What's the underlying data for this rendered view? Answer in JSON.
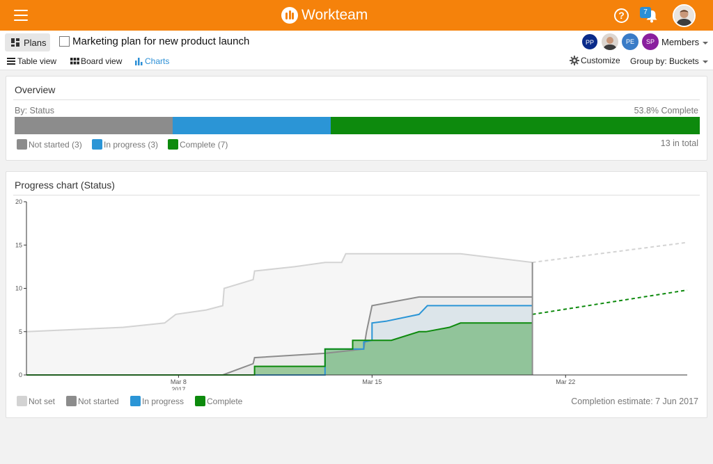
{
  "app": {
    "name": "Workteam",
    "notification_count": "7"
  },
  "plan": {
    "plans_label": "Plans",
    "title": "Marketing plan for new product launch"
  },
  "members": {
    "avatars": [
      "PP",
      "PE",
      "SP"
    ],
    "label": "Members"
  },
  "views": {
    "table": "Table view",
    "board": "Board view",
    "charts": "Charts",
    "active": "charts"
  },
  "toolbar": {
    "customize": "Customize",
    "group_by": "Group by: Buckets"
  },
  "overview": {
    "title": "Overview",
    "by_label": "By: Status",
    "complete_text": "53.8% Complete",
    "total_text": "13 in total",
    "segments": [
      {
        "label": "Not started (3)",
        "count": 3,
        "color": "#8c8c8c"
      },
      {
        "label": "In progress (3)",
        "count": 3,
        "color": "#2b95d6"
      },
      {
        "label": "Complete (7)",
        "count": 7,
        "color": "#0d8a0d"
      }
    ]
  },
  "progress": {
    "title": "Progress chart (Status)",
    "estimate": "Completion estimate: 7 Jun 2017",
    "legend": [
      {
        "label": "Not set",
        "color": "#d3d3d3"
      },
      {
        "label": "Not started",
        "color": "#8c8c8c"
      },
      {
        "label": "In progress",
        "color": "#2b95d6"
      },
      {
        "label": "Complete",
        "color": "#0d8a0d"
      }
    ]
  },
  "chart_data": {
    "type": "area",
    "title": "Progress chart (Status)",
    "x_ticks": [
      {
        "day": 8,
        "label": "Mar 8",
        "sublabel": "2017"
      },
      {
        "day": 15,
        "label": "Mar 15",
        "sublabel": ""
      },
      {
        "day": 22,
        "label": "Mar 22",
        "sublabel": ""
      }
    ],
    "y_ticks": [
      0,
      5,
      10,
      15,
      20
    ],
    "xlim": [
      2.5,
      26.4
    ],
    "ylim": [
      0,
      20
    ],
    "today_day": 20.8,
    "series": [
      {
        "name": "Not set",
        "color": "#d3d3d3",
        "points": [
          [
            2.5,
            5
          ],
          [
            6,
            5.5
          ],
          [
            7.5,
            6
          ],
          [
            7.9,
            7
          ],
          [
            9,
            7.5
          ],
          [
            9.6,
            8
          ],
          [
            9.65,
            10
          ],
          [
            10.7,
            11
          ],
          [
            10.75,
            12
          ],
          [
            12.2,
            12.5
          ],
          [
            13.3,
            13
          ],
          [
            13.9,
            13
          ],
          [
            14.05,
            14
          ],
          [
            15.7,
            14
          ],
          [
            18.2,
            14
          ],
          [
            20.8,
            13
          ]
        ],
        "projection": [
          [
            20.8,
            13
          ],
          [
            26.4,
            15.3
          ]
        ]
      },
      {
        "name": "Not started",
        "color": "#8c8c8c",
        "points": [
          [
            2.5,
            0
          ],
          [
            9.6,
            0
          ],
          [
            10.7,
            1.3
          ],
          [
            10.75,
            2
          ],
          [
            13.3,
            2.5
          ],
          [
            14.7,
            3
          ],
          [
            14.8,
            5
          ],
          [
            15,
            8
          ],
          [
            16.7,
            9
          ],
          [
            20.8,
            9
          ]
        ]
      },
      {
        "name": "In progress",
        "color": "#2b95d6",
        "points": [
          [
            2.5,
            0
          ],
          [
            13.3,
            0
          ],
          [
            13.3,
            3
          ],
          [
            14.7,
            3
          ],
          [
            14.7,
            3.8
          ],
          [
            15,
            4
          ],
          [
            15,
            6
          ],
          [
            15.5,
            6.2
          ],
          [
            16.7,
            7
          ],
          [
            17,
            8
          ],
          [
            20.8,
            8
          ]
        ]
      },
      {
        "name": "Complete",
        "color": "#0d8a0d",
        "points": [
          [
            2.5,
            0
          ],
          [
            10.75,
            0
          ],
          [
            10.75,
            1
          ],
          [
            13.3,
            1
          ],
          [
            13.3,
            3
          ],
          [
            14.3,
            3
          ],
          [
            14.3,
            4
          ],
          [
            15.7,
            4
          ],
          [
            16.7,
            5
          ],
          [
            16.95,
            5
          ],
          [
            17.8,
            5.5
          ],
          [
            18.2,
            6
          ],
          [
            20.8,
            6
          ]
        ],
        "projection": [
          [
            20.8,
            7
          ],
          [
            26.4,
            9.8
          ]
        ]
      }
    ],
    "grid": false,
    "legend_position": "bottom-left"
  }
}
